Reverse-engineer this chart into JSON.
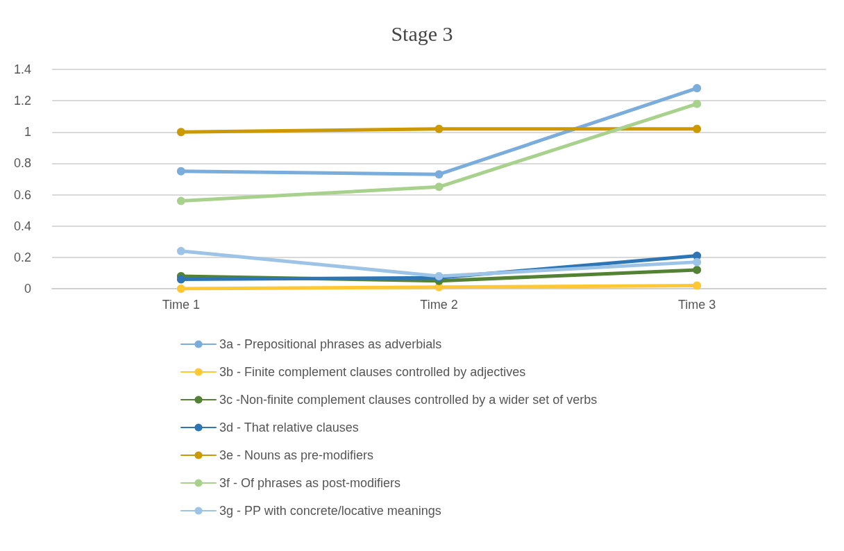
{
  "chart_data": {
    "type": "line",
    "title": "Stage 3",
    "categories": [
      "Time 1",
      "Time 2",
      "Time 3"
    ],
    "series": [
      {
        "name": "3a - Prepositional phrases as adverbials",
        "color": "#7aaddc",
        "values": [
          0.75,
          0.73,
          1.28
        ]
      },
      {
        "name": "3b - Finite complement clauses controlled by adjectives",
        "color": "#ffc733",
        "values": [
          0,
          0.01,
          0.02
        ]
      },
      {
        "name": "3c -Non-finite complement clauses controlled by a wider set of verbs",
        "color": "#548235",
        "values": [
          0.08,
          0.05,
          0.12
        ]
      },
      {
        "name": "3d - That relative clauses",
        "color": "#2e75b6",
        "values": [
          0.06,
          0.07,
          0.21
        ]
      },
      {
        "name": "3e - Nouns as pre-modifiers",
        "color": "#cc9a00",
        "values": [
          1,
          1.02,
          1.02
        ]
      },
      {
        "name": "3f - Of phrases as post-modifiers",
        "color": "#a9d18e",
        "values": [
          0.56,
          0.65,
          1.18
        ]
      },
      {
        "name": "3g - PP with concrete/locative meanings",
        "color": "#9dc3e6",
        "values": [
          0.24,
          0.08,
          0.17
        ]
      }
    ],
    "ylim": [
      0,
      1.4
    ],
    "yticks": [
      0,
      0.2,
      0.4,
      0.6,
      0.8,
      1,
      1.2,
      1.4
    ],
    "grid": "y",
    "legend": "bottom",
    "marker": "circle",
    "line_style": "solid"
  }
}
